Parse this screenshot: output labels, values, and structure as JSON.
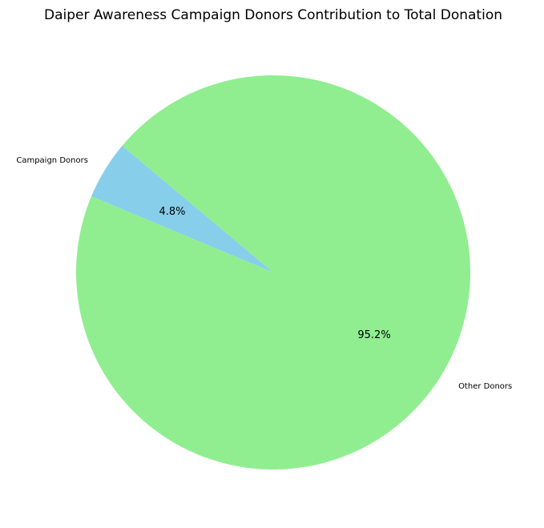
{
  "chart_data": {
    "type": "pie",
    "title": "Daiper Awareness Campaign Donors Contribution to Total Donation",
    "slices": [
      {
        "label": "Campaign Donors",
        "percent": 4.8,
        "pct_label": "4.8%",
        "color": "#87CEEB"
      },
      {
        "label": "Other Donors",
        "percent": 95.2,
        "pct_label": "95.2%",
        "color": "#90EE90"
      }
    ],
    "start_angle_deg": 140,
    "direction": "counterclockwise",
    "legend": "none"
  }
}
